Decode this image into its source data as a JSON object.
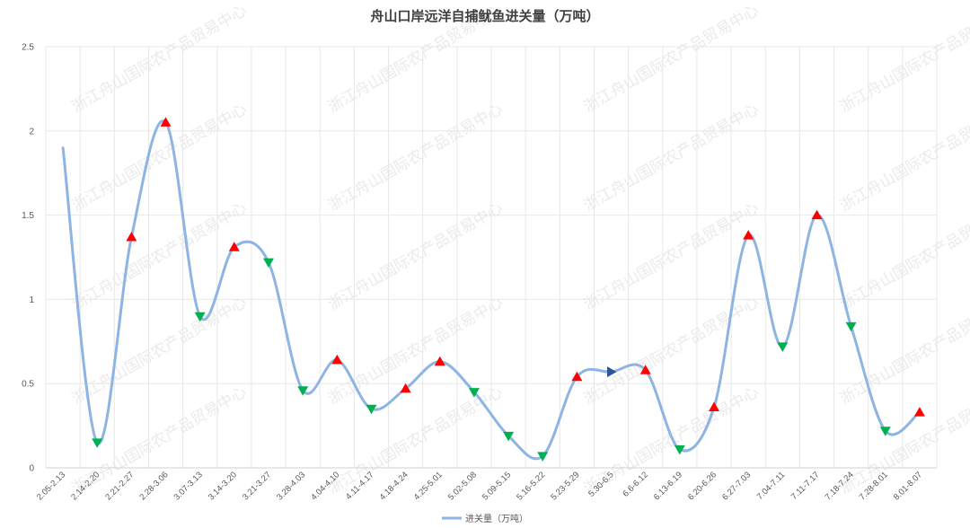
{
  "chart_data": {
    "type": "line",
    "title": "舟山口岸远洋自捕鱿鱼进关量（万吨）",
    "xlabel": "",
    "ylabel": "",
    "ylim": [
      0,
      2.5
    ],
    "yticks": [
      "0",
      "0.5",
      "1",
      "1.5",
      "2",
      "2.5"
    ],
    "grid": true,
    "legend_position": "bottom",
    "categories": [
      "2.05-2.13",
      "2.14-2.20",
      "2.21-2.27",
      "2.28-3.06",
      "3.07-3.13",
      "3.14-3.20",
      "3.21-3.27",
      "3.28-4.03",
      "4.04-4.10",
      "4.11-4.17",
      "4.18-4.24",
      "4.25-5.01",
      "5.02-5.08",
      "5.09-5.15",
      "5.16-5.22",
      "5.23-5.29",
      "5.30-6.5",
      "6.6-6.12",
      "6.13-6.19",
      "6.20-6.26",
      "6.27-7.03",
      "7.04-7.11",
      "7.11-7.17",
      "7.18-7.24",
      "7.28-8.01",
      "8.01-8.07"
    ],
    "series": [
      {
        "name": "进关量（万吨）",
        "color": "#8eb4e3",
        "values": [
          1.9,
          0.15,
          1.37,
          2.05,
          0.9,
          1.31,
          1.22,
          0.46,
          0.64,
          0.35,
          0.47,
          0.63,
          0.45,
          0.19,
          0.07,
          0.54,
          0.57,
          0.58,
          0.11,
          0.36,
          1.38,
          0.72,
          1.5,
          0.84,
          0.22,
          0.33
        ],
        "markers": [
          "none",
          "down",
          "up",
          "up",
          "down",
          "up",
          "down",
          "down",
          "up",
          "down",
          "up",
          "up",
          "down",
          "down",
          "down",
          "up",
          "right",
          "up",
          "down",
          "up",
          "up",
          "down",
          "up",
          "down",
          "down",
          "up"
        ]
      }
    ],
    "marker_colors": {
      "up": "#ff0000",
      "down": "#00b050",
      "right": "#2e5597"
    },
    "watermark": "浙江舟山国际农产品贸易中心"
  }
}
